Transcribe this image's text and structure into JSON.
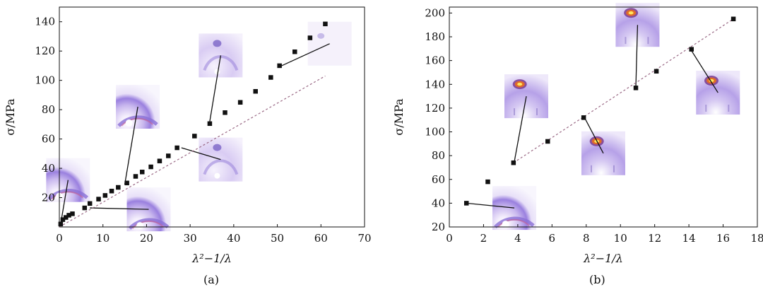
{
  "captions": [
    "(a)",
    "(b)"
  ],
  "chart_data": [
    {
      "type": "scatter",
      "caption": "(a)",
      "xlabel": "λ²−1/λ",
      "ylabel": "σ/MPa",
      "xlim": [
        0,
        70
      ],
      "ylim": [
        0,
        150
      ],
      "xticks": [
        0,
        10,
        20,
        30,
        40,
        50,
        60,
        70
      ],
      "yticks": [
        20,
        40,
        60,
        80,
        100,
        120,
        140
      ],
      "grid": false,
      "points": [
        {
          "x": 0.3,
          "y": 2
        },
        {
          "x": 0.8,
          "y": 5
        },
        {
          "x": 1.5,
          "y": 6.5
        },
        {
          "x": 2.2,
          "y": 8
        },
        {
          "x": 3.0,
          "y": 9
        },
        {
          "x": 5.8,
          "y": 13
        },
        {
          "x": 7.0,
          "y": 16
        },
        {
          "x": 9.0,
          "y": 19
        },
        {
          "x": 10.5,
          "y": 21.5
        },
        {
          "x": 12.0,
          "y": 24.5
        },
        {
          "x": 13.5,
          "y": 27
        },
        {
          "x": 15.5,
          "y": 30
        },
        {
          "x": 17.5,
          "y": 34.5
        },
        {
          "x": 19.0,
          "y": 37.5
        },
        {
          "x": 21.0,
          "y": 41
        },
        {
          "x": 23.0,
          "y": 45
        },
        {
          "x": 25.0,
          "y": 48.5
        },
        {
          "x": 27.0,
          "y": 54
        },
        {
          "x": 31.0,
          "y": 62
        },
        {
          "x": 34.5,
          "y": 70.5
        },
        {
          "x": 38.0,
          "y": 78
        },
        {
          "x": 41.5,
          "y": 85
        },
        {
          "x": 45.0,
          "y": 92.5
        },
        {
          "x": 48.5,
          "y": 102
        },
        {
          "x": 50.5,
          "y": 110
        },
        {
          "x": 54.0,
          "y": 119.5
        },
        {
          "x": 57.5,
          "y": 129
        },
        {
          "x": 61.0,
          "y": 138.5
        }
      ],
      "fit_line": {
        "x0": 0,
        "y0": 0,
        "x1": 61,
        "y1": 103
      },
      "insets": [
        {
          "image": "saxs-pattern-ring",
          "pattern": "ring",
          "at": {
            "x": 2,
            "y": 32
          },
          "data_at": {
            "x": 0.3,
            "y": 2
          }
        },
        {
          "image": "saxs-pattern-ring",
          "pattern": "ring",
          "at": {
            "x": 18,
            "y": 82
          },
          "data_at": {
            "x": 15,
            "y": 29
          }
        },
        {
          "image": "saxs-pattern-ring",
          "pattern": "ring",
          "at": {
            "x": 20.5,
            "y": 12
          },
          "data_at": {
            "x": 7,
            "y": 13
          }
        },
        {
          "image": "saxs-pattern-spot",
          "pattern": "spot",
          "at": {
            "x": 37,
            "y": 46
          },
          "data_at": {
            "x": 28,
            "y": 54
          }
        },
        {
          "image": "saxs-pattern-spot",
          "pattern": "spot",
          "at": {
            "x": 37,
            "y": 117
          },
          "data_at": {
            "x": 34.5,
            "y": 72
          }
        },
        {
          "image": "saxs-pattern-faint",
          "pattern": "faint",
          "at": {
            "x": 62,
            "y": 125
          },
          "data_at": {
            "x": 51,
            "y": 110
          }
        }
      ]
    },
    {
      "type": "scatter",
      "caption": "(b)",
      "xlabel": "λ²−1/λ",
      "ylabel": "σ/MPa",
      "xlim": [
        0,
        18
      ],
      "ylim": [
        20,
        205
      ],
      "xticks": [
        0,
        2,
        4,
        6,
        8,
        10,
        12,
        14,
        16,
        18
      ],
      "yticks": [
        20,
        40,
        60,
        80,
        100,
        120,
        140,
        160,
        180,
        200
      ],
      "grid": false,
      "points": [
        {
          "x": 1.0,
          "y": 40
        },
        {
          "x": 2.25,
          "y": 58
        },
        {
          "x": 3.75,
          "y": 74
        },
        {
          "x": 5.75,
          "y": 92
        },
        {
          "x": 7.85,
          "y": 112
        },
        {
          "x": 10.9,
          "y": 137
        },
        {
          "x": 12.1,
          "y": 151
        },
        {
          "x": 14.15,
          "y": 169.5
        },
        {
          "x": 16.6,
          "y": 195
        }
      ],
      "fit_line": {
        "x0": 3.75,
        "y0": 74,
        "x1": 16.6,
        "y1": 195
      },
      "insets": [
        {
          "image": "saxs-pattern-ring",
          "pattern": "ring",
          "at": {
            "x": 3.8,
            "y": 36
          },
          "data_at": {
            "x": 1.0,
            "y": 40
          }
        },
        {
          "image": "saxs-pattern-hot",
          "pattern": "hot",
          "at": {
            "x": 4.5,
            "y": 130
          },
          "data_at": {
            "x": 3.8,
            "y": 75
          }
        },
        {
          "image": "saxs-pattern-hot",
          "pattern": "hot",
          "at": {
            "x": 9.0,
            "y": 82
          },
          "data_at": {
            "x": 7.9,
            "y": 112
          }
        },
        {
          "image": "saxs-pattern-hot",
          "pattern": "hot",
          "at": {
            "x": 11.0,
            "y": 190
          },
          "data_at": {
            "x": 10.9,
            "y": 138
          }
        },
        {
          "image": "saxs-pattern-hot",
          "pattern": "hot",
          "at": {
            "x": 15.7,
            "y": 133
          },
          "data_at": {
            "x": 14.1,
            "y": 169.5
          }
        }
      ]
    }
  ]
}
